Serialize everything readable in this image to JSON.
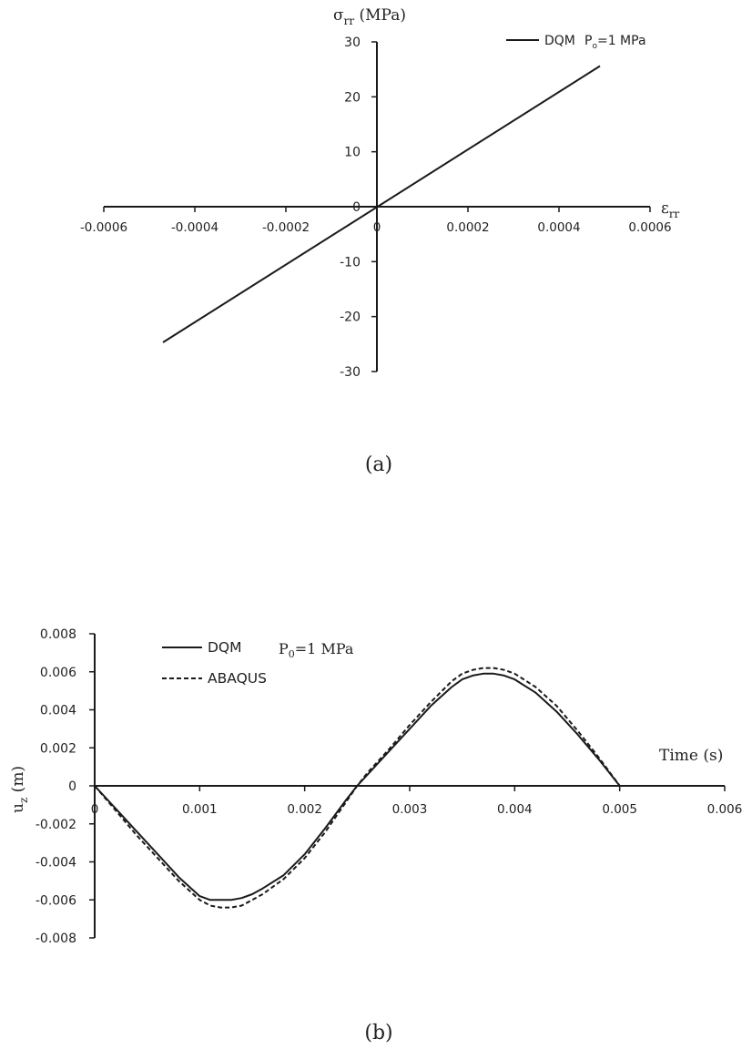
{
  "chart_data": [
    {
      "panel_label": "(a)",
      "type": "line",
      "title": "",
      "xlabel": "εrr",
      "ylabel": "σrr (MPa)",
      "ylabel_symbol": "σ",
      "ylabel_sub": "rr",
      "ylabel_unit": "(MPa)",
      "xlabel_symbol": "ε",
      "xlabel_sub": "rr",
      "xlim": [
        -0.0006,
        0.0006
      ],
      "ylim": [
        -30,
        30
      ],
      "x_ticks": [
        -0.0006,
        -0.0004,
        -0.0002,
        0,
        0.0002,
        0.0004,
        0.0006
      ],
      "x_tick_labels": [
        "-0.0006",
        "-0.0004",
        "-0.0002",
        "0",
        "0.0002",
        "0.0004",
        "0.0006"
      ],
      "y_ticks": [
        30,
        20,
        10,
        0,
        -10,
        -20,
        -30
      ],
      "y_tick_labels": [
        "30",
        "20",
        "10",
        "0",
        "-10",
        "-20",
        "-30"
      ],
      "grid": false,
      "legend_position": "top-right",
      "annotation": "Po=1 MPa",
      "annotation_base": "P",
      "annotation_sub": "o",
      "annotation_rest": "=1 MPa",
      "series": [
        {
          "name": "DQM",
          "style": "solid",
          "color": "#1a1a1a",
          "x": [
            -0.00047,
            0.00049
          ],
          "y": [
            -24.7,
            25.6
          ]
        }
      ]
    },
    {
      "panel_label": "(b)",
      "type": "line",
      "title": "",
      "xlabel": "Time (s)",
      "ylabel": "uz (m)",
      "ylabel_base": "u",
      "ylabel_sub": "z",
      "ylabel_unit": " (m)",
      "xlim": [
        0,
        0.006
      ],
      "ylim": [
        -0.008,
        0.008
      ],
      "x_ticks": [
        0,
        0.001,
        0.002,
        0.003,
        0.004,
        0.005,
        0.006
      ],
      "x_tick_labels": [
        "0",
        "0.001",
        "0.002",
        "0.003",
        "0.004",
        "0.005",
        "0.006"
      ],
      "y_ticks": [
        0.008,
        0.006,
        0.004,
        0.002,
        0,
        -0.002,
        -0.004,
        -0.006,
        -0.008
      ],
      "y_tick_labels": [
        "0.008",
        "0.006",
        "0.004",
        "0.002",
        "0",
        "-0.002",
        "-0.004",
        "-0.006",
        "-0.008"
      ],
      "grid": false,
      "legend_position": "top-left",
      "annotation": "P0=1 MPa",
      "annotation_base": "P",
      "annotation_sub": "0",
      "annotation_rest": "=1 MPa",
      "series": [
        {
          "name": "DQM",
          "style": "solid",
          "color": "#1a1a1a",
          "x": [
            0,
            0.0002,
            0.0004,
            0.0006,
            0.0008,
            0.001,
            0.0011,
            0.0012,
            0.0013,
            0.0014,
            0.0015,
            0.0016,
            0.0018,
            0.002,
            0.0022,
            0.0024,
            0.0025,
            0.0026,
            0.0028,
            0.003,
            0.0032,
            0.0034,
            0.0035,
            0.0036,
            0.0037,
            0.0038,
            0.0039,
            0.004,
            0.0042,
            0.0044,
            0.0046,
            0.0048,
            0.005
          ],
          "y": [
            0,
            -0.0012,
            -0.0024,
            -0.0036,
            -0.0048,
            -0.0058,
            -0.006,
            -0.006,
            -0.006,
            -0.0059,
            -0.0057,
            -0.0054,
            -0.0047,
            -0.0036,
            -0.0022,
            -0.0007,
            0,
            0.0006,
            0.0018,
            0.003,
            0.0042,
            0.0052,
            0.0056,
            0.0058,
            0.0059,
            0.0059,
            0.0058,
            0.0056,
            0.0049,
            0.0039,
            0.0027,
            0.0014,
            0
          ]
        },
        {
          "name": "ABAQUS",
          "style": "dashed",
          "color": "#1a1a1a",
          "x": [
            0,
            0.0002,
            0.0004,
            0.0006,
            0.0008,
            0.001,
            0.0011,
            0.0012,
            0.0013,
            0.0014,
            0.0015,
            0.0016,
            0.0018,
            0.002,
            0.0022,
            0.0024,
            0.0025,
            0.0026,
            0.0028,
            0.003,
            0.0032,
            0.0034,
            0.0035,
            0.0036,
            0.0037,
            0.0038,
            0.0039,
            0.004,
            0.0042,
            0.0044,
            0.0046,
            0.0048,
            0.005
          ],
          "y": [
            0,
            -0.0013,
            -0.0026,
            -0.0038,
            -0.005,
            -0.006,
            -0.0063,
            -0.0064,
            -0.0064,
            -0.0063,
            -0.006,
            -0.0057,
            -0.0049,
            -0.0038,
            -0.0024,
            -0.0008,
            0,
            0.0007,
            0.0019,
            0.0032,
            0.0044,
            0.0055,
            0.0059,
            0.0061,
            0.0062,
            0.0062,
            0.0061,
            0.0059,
            0.0052,
            0.0042,
            0.0029,
            0.0015,
            0
          ]
        }
      ]
    }
  ]
}
